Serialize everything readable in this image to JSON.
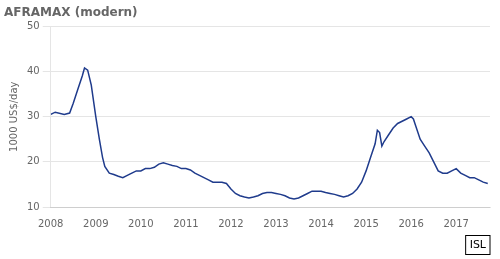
{
  "chart_data": {
    "type": "line",
    "title": "AFRAMAX (modern)",
    "ylabel": "1000 US$/day",
    "annotation": "ISL",
    "color": "#1f3b8c",
    "grid": "y",
    "xlim": [
      2008.0,
      2017.75
    ],
    "ylim": [
      10,
      50
    ],
    "xticks": [
      2008,
      2009,
      2010,
      2011,
      2012,
      2013,
      2014,
      2015,
      2016,
      2017
    ],
    "yticks": [
      10,
      20,
      30,
      40,
      50
    ],
    "x": [
      2008.0,
      2008.1,
      2008.3,
      2008.42,
      2008.5,
      2008.6,
      2008.7,
      2008.75,
      2008.82,
      2008.9,
      2009.0,
      2009.08,
      2009.15,
      2009.2,
      2009.3,
      2009.4,
      2009.5,
      2009.6,
      2009.7,
      2009.8,
      2009.9,
      2010.0,
      2010.1,
      2010.2,
      2010.3,
      2010.4,
      2010.5,
      2010.6,
      2010.7,
      2010.8,
      2010.9,
      2011.0,
      2011.1,
      2011.2,
      2011.3,
      2011.4,
      2011.5,
      2011.6,
      2011.7,
      2011.8,
      2011.9,
      2012.0,
      2012.1,
      2012.2,
      2012.3,
      2012.4,
      2012.5,
      2012.6,
      2012.7,
      2012.8,
      2012.9,
      2013.0,
      2013.1,
      2013.2,
      2013.3,
      2013.4,
      2013.5,
      2013.6,
      2013.7,
      2013.8,
      2013.9,
      2014.0,
      2014.1,
      2014.2,
      2014.3,
      2014.4,
      2014.5,
      2014.6,
      2014.7,
      2014.8,
      2014.9,
      2015.0,
      2015.1,
      2015.2,
      2015.25,
      2015.3,
      2015.35,
      2015.4,
      2015.5,
      2015.6,
      2015.7,
      2015.8,
      2015.9,
      2016.0,
      2016.05,
      2016.1,
      2016.2,
      2016.3,
      2016.4,
      2016.5,
      2016.6,
      2016.7,
      2016.8,
      2016.9,
      2017.0,
      2017.1,
      2017.2,
      2017.3,
      2017.4,
      2017.5,
      2017.6,
      2017.7
    ],
    "values": [
      30.5,
      31.0,
      30.5,
      30.8,
      33.0,
      36.0,
      39.0,
      40.8,
      40.3,
      37.0,
      30.0,
      25.0,
      21.0,
      19.0,
      17.5,
      17.2,
      16.8,
      16.5,
      17.0,
      17.5,
      18.0,
      18.0,
      18.5,
      18.5,
      18.8,
      19.5,
      19.8,
      19.5,
      19.2,
      19.0,
      18.5,
      18.5,
      18.2,
      17.5,
      17.0,
      16.5,
      16.0,
      15.5,
      15.5,
      15.5,
      15.2,
      14.0,
      13.0,
      12.5,
      12.2,
      12.0,
      12.2,
      12.5,
      13.0,
      13.2,
      13.2,
      13.0,
      12.8,
      12.5,
      12.0,
      11.8,
      12.0,
      12.5,
      13.0,
      13.5,
      13.5,
      13.5,
      13.2,
      13.0,
      12.8,
      12.5,
      12.2,
      12.5,
      13.0,
      14.0,
      15.5,
      18.0,
      21.0,
      24.0,
      27.0,
      26.5,
      23.5,
      24.5,
      26.0,
      27.5,
      28.5,
      29.0,
      29.5,
      30.0,
      29.5,
      28.0,
      25.0,
      23.5,
      22.0,
      20.0,
      18.0,
      17.5,
      17.5,
      18.0,
      18.5,
      17.5,
      17.0,
      16.5,
      16.5,
      16.0,
      15.5,
      15.2
    ]
  }
}
